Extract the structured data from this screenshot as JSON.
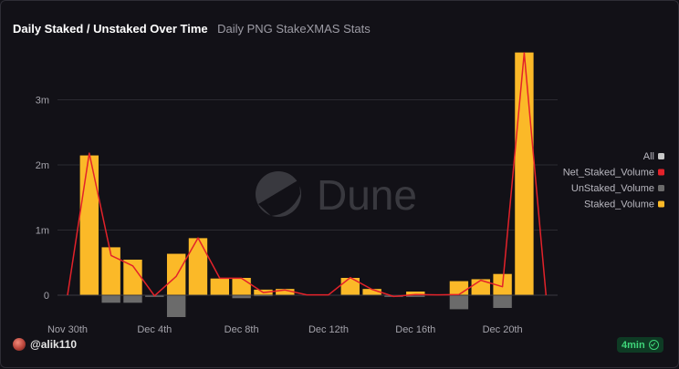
{
  "header": {
    "title": "Daily Staked / Unstaked Over Time",
    "subtitle": "Daily PNG StakeXMAS Stats"
  },
  "watermark": "Dune",
  "footer": {
    "username": "@alik110",
    "badge": "4min"
  },
  "colors": {
    "staked": "#fbb928",
    "unstaked": "#6b6b6b",
    "net": "#e3222a",
    "all": "#c8c8c8"
  },
  "chart_data": {
    "type": "bar",
    "categories": [
      "Nov 30th",
      "Dec 1st",
      "Dec 2nd",
      "Dec 3rd",
      "Dec 4th",
      "Dec 5th",
      "Dec 6th",
      "Dec 7th",
      "Dec 8th",
      "Dec 9th",
      "Dec 10th",
      "Dec 11th",
      "Dec 12th",
      "Dec 13th",
      "Dec 14th",
      "Dec 15th",
      "Dec 16th",
      "Dec 17th",
      "Dec 18th",
      "Dec 19th",
      "Dec 20th",
      "Dec 21st",
      "Dec 22nd"
    ],
    "x_tick_labels": [
      {
        "index": 0,
        "label": "Nov 30th"
      },
      {
        "index": 4,
        "label": "Dec 4th"
      },
      {
        "index": 8,
        "label": "Dec 8th"
      },
      {
        "index": 12,
        "label": "Dec 12th"
      },
      {
        "index": 16,
        "label": "Dec 16th"
      },
      {
        "index": 20,
        "label": "Dec 20th"
      }
    ],
    "y_ticks": [
      0,
      1000000,
      2000000,
      3000000
    ],
    "y_tick_labels": [
      "0",
      "1m",
      "2m",
      "3m"
    ],
    "ylim": [
      -350000,
      4100000
    ],
    "grid": true,
    "legend_position": "right",
    "legend": [
      "All",
      "Net_Staked_Volume",
      "UnStaked_Volume",
      "Staked_Volume"
    ],
    "series": [
      {
        "name": "Staked_Volume",
        "type": "bar",
        "values": [
          0,
          2150000,
          740000,
          550000,
          10000,
          640000,
          880000,
          260000,
          270000,
          90000,
          100000,
          10000,
          5000,
          270000,
          100000,
          10000,
          60000,
          10000,
          220000,
          250000,
          330000,
          3730000,
          0
        ]
      },
      {
        "name": "UnStaked_Volume",
        "type": "bar",
        "values": [
          0,
          0,
          -120000,
          -120000,
          -30000,
          -340000,
          0,
          0,
          -50000,
          -20000,
          0,
          0,
          0,
          0,
          -10000,
          -30000,
          -30000,
          0,
          -220000,
          0,
          -200000,
          0,
          0
        ]
      },
      {
        "name": "Net_Staked_Volume",
        "type": "line",
        "values": [
          0,
          2180000,
          610000,
          450000,
          -10000,
          290000,
          880000,
          260000,
          260000,
          40000,
          80000,
          5000,
          5000,
          270000,
          90000,
          -20000,
          10000,
          5000,
          10000,
          230000,
          130000,
          3720000,
          0
        ]
      }
    ]
  }
}
